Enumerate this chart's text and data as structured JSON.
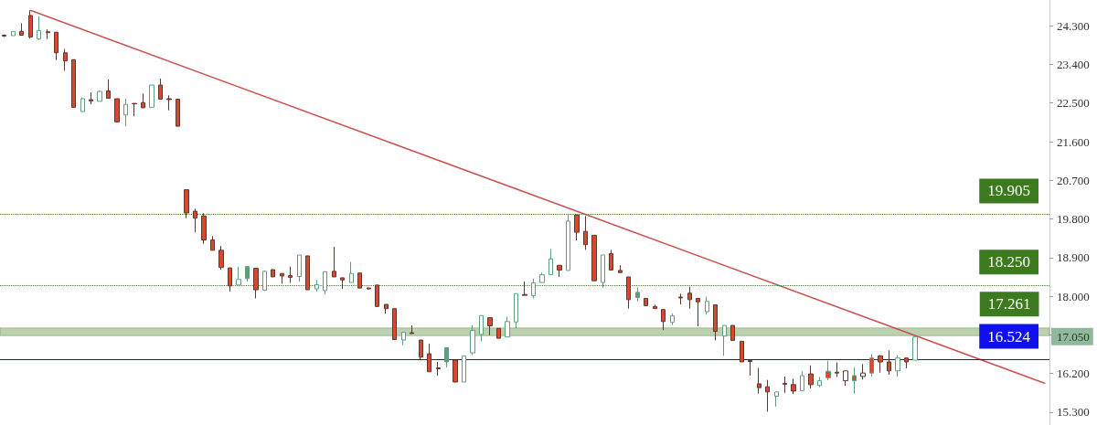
{
  "chart_data": {
    "type": "candlestick",
    "categories": [
      null,
      null,
      null,
      null,
      null,
      null,
      null,
      null,
      null,
      null,
      null,
      null,
      null,
      null,
      null,
      null,
      null,
      null,
      null,
      null,
      null,
      null,
      null,
      null,
      null,
      null,
      null,
      null,
      null,
      null,
      null,
      null,
      null,
      null,
      null,
      null,
      null,
      null,
      null,
      null,
      null,
      null,
      null,
      null,
      null,
      null,
      null,
      null,
      null,
      null,
      null,
      null,
      null,
      null,
      null,
      null,
      null,
      null,
      null,
      null,
      null,
      null,
      null,
      null,
      null,
      null,
      null,
      null,
      null,
      null,
      null,
      null,
      null,
      null,
      null,
      null,
      null,
      null,
      null,
      null,
      null,
      null,
      null,
      null,
      null,
      null,
      null,
      null,
      null,
      null,
      null,
      null,
      null,
      null,
      null,
      null,
      null,
      null,
      null,
      null,
      null,
      null,
      null,
      null,
      null,
      null,
      null,
      null,
      null,
      null,
      null,
      null,
      null,
      null,
      null,
      null,
      null,
      null,
      null,
      null,
      null
    ],
    "ohlc": [
      [
        24.08,
        24.1,
        24.04,
        24.06
      ],
      [
        24.07,
        24.17,
        24.07,
        24.17
      ],
      [
        24.17,
        24.36,
        24.08,
        24.08
      ],
      [
        24.54,
        24.66,
        24.0,
        24.04
      ],
      [
        23.99,
        24.52,
        23.97,
        24.19
      ],
      [
        24.16,
        24.22,
        23.99,
        24.14
      ],
      [
        24.15,
        24.15,
        23.5,
        23.67
      ],
      [
        23.67,
        23.76,
        23.25,
        23.48
      ],
      [
        23.51,
        23.51,
        22.4,
        22.4
      ],
      [
        22.3,
        22.63,
        22.3,
        22.6
      ],
      [
        22.58,
        22.75,
        22.47,
        22.55
      ],
      [
        22.54,
        22.79,
        22.54,
        22.77
      ],
      [
        22.78,
        23.05,
        22.61,
        22.61
      ],
      [
        22.6,
        22.6,
        22.06,
        22.06
      ],
      [
        22.22,
        22.6,
        21.96,
        22.47
      ],
      [
        22.49,
        22.5,
        22.19,
        22.48
      ],
      [
        22.51,
        22.72,
        22.39,
        22.39
      ],
      [
        22.4,
        22.92,
        22.4,
        22.92
      ],
      [
        22.92,
        23.07,
        22.59,
        22.59
      ],
      [
        22.6,
        22.68,
        22.33,
        22.58
      ],
      [
        22.59,
        22.59,
        21.96,
        21.96
      ],
      [
        20.48,
        20.48,
        19.82,
        19.94
      ],
      [
        19.98,
        20.04,
        19.49,
        19.82
      ],
      [
        19.87,
        19.93,
        19.22,
        19.31
      ],
      [
        19.31,
        19.4,
        19.07,
        19.07
      ],
      [
        19.07,
        19.17,
        18.62,
        18.67
      ],
      [
        18.66,
        18.66,
        18.11,
        18.24
      ],
      [
        18.26,
        18.69,
        18.26,
        18.39
      ],
      [
        18.41,
        18.69,
        18.34,
        18.69
      ],
      [
        18.65,
        18.65,
        17.95,
        18.15
      ],
      [
        18.14,
        18.6,
        18.14,
        18.58
      ],
      [
        18.62,
        18.62,
        18.45,
        18.45
      ],
      [
        18.53,
        18.53,
        18.29,
        18.47
      ],
      [
        18.48,
        18.69,
        18.31,
        18.44
      ],
      [
        18.46,
        18.96,
        18.34,
        18.96
      ],
      [
        18.94,
        18.94,
        18.15,
        18.15
      ],
      [
        18.17,
        18.38,
        18.1,
        18.27
      ],
      [
        18.13,
        18.57,
        18.04,
        18.57
      ],
      [
        18.58,
        19.15,
        18.45,
        18.45
      ],
      [
        18.43,
        18.43,
        18.17,
        18.38
      ],
      [
        18.32,
        18.8,
        18.32,
        18.53
      ],
      [
        18.54,
        18.54,
        18.19,
        18.19
      ],
      [
        18.19,
        18.21,
        18.15,
        18.17
      ],
      [
        18.26,
        18.26,
        17.76,
        17.76
      ],
      [
        17.81,
        17.81,
        17.59,
        17.71
      ],
      [
        17.71,
        17.71,
        16.99,
        16.99
      ],
      [
        16.98,
        17.16,
        16.86,
        17.16
      ],
      [
        17.15,
        17.32,
        17.13,
        17.13
      ],
      [
        16.98,
        16.98,
        16.52,
        16.58
      ],
      [
        16.66,
        16.89,
        16.24,
        16.24
      ],
      [
        16.33,
        16.47,
        16.15,
        16.31
      ],
      [
        16.47,
        16.8,
        16.34,
        16.8
      ],
      [
        16.51,
        16.51,
        16.0,
        16.0
      ],
      [
        16.0,
        16.61,
        16.0,
        16.61
      ],
      [
        16.68,
        17.32,
        16.63,
        17.2
      ],
      [
        17.11,
        17.55,
        16.95,
        17.55
      ],
      [
        17.5,
        17.5,
        17.09,
        17.31
      ],
      [
        17.25,
        17.25,
        17.02,
        17.02
      ],
      [
        17.05,
        17.52,
        17.05,
        17.41
      ],
      [
        17.4,
        18.06,
        17.25,
        18.06
      ],
      [
        18.04,
        18.34,
        18.02,
        18.02
      ],
      [
        18.01,
        18.41,
        17.95,
        18.31
      ],
      [
        18.32,
        18.55,
        18.32,
        18.5
      ],
      [
        18.5,
        19.1,
        18.5,
        18.87
      ],
      [
        18.72,
        18.72,
        18.45,
        18.61
      ],
      [
        18.6,
        19.89,
        18.6,
        19.75
      ],
      [
        19.89,
        19.905,
        19.3,
        19.49
      ],
      [
        19.51,
        19.87,
        19.08,
        19.2
      ],
      [
        19.42,
        19.42,
        18.36,
        18.36
      ],
      [
        18.32,
        18.96,
        18.2,
        18.96
      ],
      [
        18.99,
        19.08,
        18.61,
        18.61
      ],
      [
        18.6,
        18.72,
        18.55,
        18.55
      ],
      [
        18.45,
        18.45,
        17.71,
        17.92
      ],
      [
        17.97,
        18.2,
        17.88,
        18.09
      ],
      [
        17.95,
        17.95,
        17.78,
        17.78
      ],
      [
        17.76,
        17.8,
        17.71,
        17.71
      ],
      [
        17.69,
        17.69,
        17.21,
        17.41
      ],
      [
        17.39,
        17.6,
        17.33,
        17.54
      ],
      [
        17.98,
        18.06,
        17.81,
        17.96
      ],
      [
        18.07,
        18.22,
        17.71,
        17.92
      ],
      [
        17.95,
        17.95,
        17.3,
        17.87
      ],
      [
        17.64,
        17.99,
        17.57,
        17.88
      ],
      [
        17.8,
        17.8,
        16.97,
        17.18
      ],
      [
        17.07,
        17.32,
        16.61,
        17.32
      ],
      [
        17.32,
        17.32,
        16.97,
        16.97
      ],
      [
        16.95,
        16.95,
        16.47,
        16.47
      ],
      [
        16.5,
        16.52,
        16.15,
        16.48
      ],
      [
        15.96,
        16.33,
        15.73,
        15.87
      ],
      [
        15.89,
        16.05,
        15.31,
        15.77
      ],
      [
        15.67,
        15.77,
        15.43,
        15.77
      ],
      [
        15.97,
        16.13,
        15.75,
        15.95
      ],
      [
        15.94,
        16.08,
        15.72,
        15.79
      ],
      [
        15.8,
        16.26,
        15.8,
        16.15
      ],
      [
        16.19,
        16.39,
        15.85,
        15.94
      ],
      [
        15.92,
        16.12,
        15.88,
        16.03
      ],
      [
        16.1,
        16.49,
        16.04,
        16.25
      ],
      [
        16.23,
        16.46,
        16.12,
        16.21
      ],
      [
        16.26,
        16.26,
        15.91,
        16.03
      ],
      [
        16.03,
        16.34,
        15.73,
        16.15
      ],
      [
        16.21,
        16.42,
        16.06,
        16.13
      ],
      [
        16.21,
        16.65,
        16.13,
        16.56
      ],
      [
        16.61,
        16.63,
        16.22,
        16.47
      ],
      [
        16.47,
        16.74,
        16.17,
        16.26
      ],
      [
        16.26,
        16.63,
        16.12,
        16.56
      ],
      [
        16.56,
        16.56,
        16.32,
        16.47
      ],
      [
        16.51,
        17.07,
        16.51,
        17.05
      ],
      null,
      null,
      null,
      null,
      null,
      null,
      null,
      null,
      null,
      null,
      null,
      null,
      null,
      null,
      null
    ],
    "colors": [
      "#d9472f",
      "#ffffff",
      "#d9472f",
      "#d9472f",
      "#ffffff",
      "#d9472f",
      "#d9472f",
      "#d9472f",
      "#d9472f",
      "#ffffff",
      "#d9472f",
      "#ffffff",
      "#d9472f",
      "#d9472f",
      "#ffffff",
      "#d9472f",
      "#d9472f",
      "#ffffff",
      "#d9472f",
      "#d9472f",
      "#d9472f",
      "#d9472f",
      "#d9472f",
      "#d9472f",
      "#d9472f",
      "#d9472f",
      "#d9472f",
      "#ffffff",
      "#5f9e7c",
      "#d9472f",
      "#ffffff",
      "#d9472f",
      "#d9472f",
      "#d9472f",
      "#ffffff",
      "#d9472f",
      "#ffffff",
      "#ffffff",
      "#d9472f",
      "#d9472f",
      "#ffffff",
      "#d9472f",
      "#d9472f",
      "#d9472f",
      "#d9472f",
      "#d9472f",
      "#ffffff",
      "#d9472f",
      "#d9472f",
      "#d9472f",
      "#d9472f",
      "#5f9e7c",
      "#d9472f",
      "#ffffff",
      "#ffffff",
      "#ffffff",
      "#d9472f",
      "#d9472f",
      "#ffffff",
      "#ffffff",
      "#d9472f",
      "#ffffff",
      "#ffffff",
      "#ffffff",
      "#d9472f",
      "#ffffff",
      "#d9472f",
      "#d9472f",
      "#d9472f",
      "#ffffff",
      "#d9472f",
      "#d9472f",
      "#d9472f",
      "#5f9e7c",
      "#d9472f",
      "#d9472f",
      "#d9472f",
      "#ffffff",
      "#d9472f",
      "#d9472f",
      "#d9472f",
      "#ffffff",
      "#d9472f",
      "#ffffff",
      "#d9472f",
      "#d9472f",
      "#d9472f",
      "#d9472f",
      "#d9472f",
      "#ffffff",
      "#d9472f",
      "#d9472f",
      "#ffffff",
      "#d9472f",
      "#ffffff",
      "#d9472f",
      "#d9472f",
      "#ffffff",
      "#d9472f",
      "#ffffff",
      "#d9472f",
      "#d9472f",
      "#d9472f",
      "#ffffff",
      "#d9472f",
      "#ffffff",
      null,
      null,
      null,
      null,
      null,
      null,
      null,
      null,
      null,
      null,
      null,
      null,
      null,
      null,
      null
    ],
    "series": [
      {
        "type": "line",
        "color": "#c9514f",
        "values": [
          null,
          null,
          null,
          24.66,
          null,
          null,
          null,
          null,
          null,
          null,
          null,
          null,
          null,
          null,
          null,
          null,
          null,
          null,
          null,
          null,
          null,
          null,
          null,
          null,
          null,
          null,
          null,
          null,
          null,
          null,
          null,
          null,
          null,
          null,
          null,
          null,
          null,
          null,
          null,
          null,
          null,
          null,
          null,
          null,
          null,
          null,
          null,
          null,
          null,
          null,
          null,
          null,
          null,
          null,
          null,
          null,
          null,
          null,
          null,
          null,
          null,
          null,
          null,
          null,
          null,
          null,
          null,
          null,
          null,
          null,
          null,
          null,
          null,
          null,
          null,
          null,
          null,
          null,
          null,
          null,
          null,
          null,
          null,
          null,
          null,
          null,
          null,
          null,
          null,
          null,
          null,
          null,
          null,
          null,
          null,
          null,
          null,
          null,
          null,
          null,
          null,
          null,
          null,
          null,
          null,
          null,
          null,
          null,
          null,
          null,
          null,
          null,
          null,
          null,
          null,
          null,
          null,
          null,
          null,
          null,
          15.97
        ]
      }
    ],
    "ref_lines": [
      {
        "axis": "y",
        "value": 19.905,
        "label": "19.905",
        "color": "#3b7a1e",
        "line_style": "dotted"
      },
      {
        "axis": "y",
        "value": 18.25,
        "label": "18.250",
        "color": "#3b7a1e",
        "line_style": "dotted"
      },
      {
        "axis": "y",
        "value": 16.524,
        "label": "16.524",
        "color": "#1010ee",
        "line_style": "solid"
      }
    ],
    "bands": [
      {
        "axis": "y",
        "from": 17.08,
        "to": 17.261,
        "label": "17.261",
        "color": "#3b7a1e"
      }
    ],
    "annotations": [
      "17.050"
    ],
    "ylim": [
      15.0,
      24.9
    ],
    "yticks": [
      {
        "value": 24.3,
        "label": "24.300"
      },
      {
        "value": 23.4,
        "label": "23.400"
      },
      {
        "value": 22.5,
        "label": "22.500"
      },
      {
        "value": 21.6,
        "label": "21.600"
      },
      {
        "value": 20.7,
        "label": "20.700"
      },
      {
        "value": 19.8,
        "label": "19.800"
      },
      {
        "value": 18.9,
        "label": "18.900"
      },
      {
        "value": 18.0,
        "label": "18.000"
      },
      {
        "value": 17.1,
        "label": null
      },
      {
        "value": 16.2,
        "label": "16.200"
      },
      {
        "value": 15.3,
        "label": "15.300"
      }
    ],
    "tick_labels": "y",
    "grid": false
  }
}
